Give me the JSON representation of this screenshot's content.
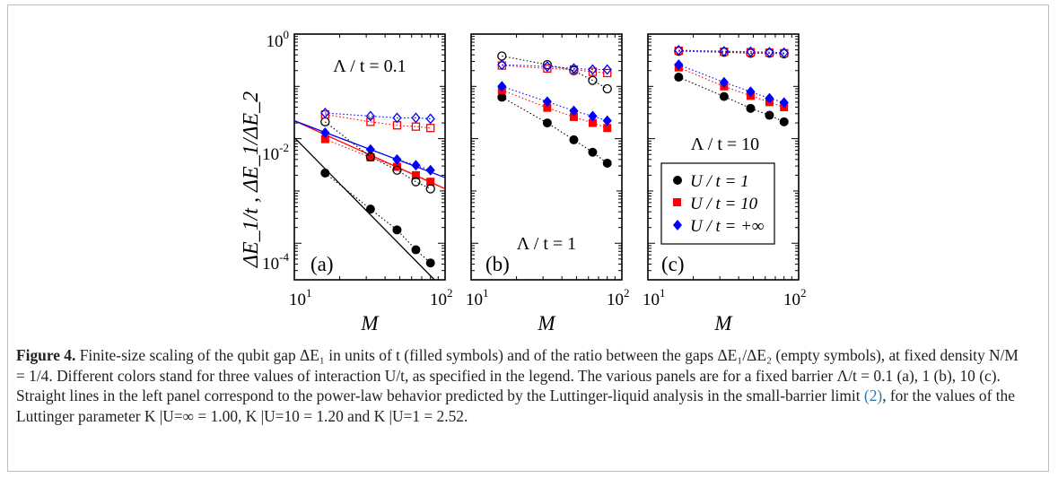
{
  "figure": {
    "ylabel": "ΔE_1/t ,  ΔE_1/ΔE_2",
    "xlabel": "M",
    "legend": [
      {
        "label": "U / t = 1",
        "color": "#000000",
        "marker": "circle"
      },
      {
        "label": "U / t = 10",
        "color": "#ff0000",
        "marker": "square"
      },
      {
        "label": "U / t = +∞",
        "color": "#0000ff",
        "marker": "diamond"
      }
    ],
    "y_ticks": [
      "10",
      "10",
      "10"
    ],
    "y_tick_exps": [
      "0",
      "-2",
      "-4"
    ],
    "x_ticks": [
      "10",
      "10"
    ],
    "x_tick_exps": [
      "1",
      "2"
    ]
  },
  "caption": {
    "label": "Figure 4.",
    "text": " Finite-size scaling of the qubit gap ΔE₁ in units of t (filled symbols) and of the ratio between the gaps ΔE₁/ΔE₂ (empty symbols), at fixed density N/M = 1/4. Different colors stand for three values of interaction U/t, as specified in the legend. The various panels are for a fixed barrier Λ/t = 0.1 (a), 1 (b), 10 (c). Straight lines in the left panel correspond to the power-law behavior predicted by the Luttinger-liquid analysis in the small-barrier limit ",
    "ref": "(2)",
    "text_end": ", for the values of the Luttinger parameter K |U=∞ = 1.00, K |U=10 = 1.20 and K |U=1 = 2.52."
  },
  "chart_data": [
    {
      "type": "scatter",
      "panel_label": "(a)",
      "annotation": "Λ / t = 0.1",
      "xlabel": "M",
      "x_scale": "log",
      "y_scale": "log",
      "xlim": [
        10,
        100
      ],
      "ylim": [
        2e-05,
        1
      ],
      "x": [
        16,
        32,
        48,
        64,
        80
      ],
      "series": [
        {
          "name": "U / t = 1",
          "kind": "gap",
          "values": [
            0.0022,
            0.00045,
            0.00018,
            7.5e-05,
            4.2e-05
          ]
        },
        {
          "name": "U / t = 10",
          "kind": "gap",
          "values": [
            0.0098,
            0.0044,
            0.0029,
            0.002,
            0.0015
          ]
        },
        {
          "name": "U / t = +∞",
          "kind": "gap",
          "values": [
            0.013,
            0.0062,
            0.004,
            0.0031,
            0.0025
          ]
        },
        {
          "name": "U / t = 1",
          "kind": "ratio",
          "values": [
            0.021,
            0.0045,
            0.0025,
            0.0015,
            0.0011
          ]
        },
        {
          "name": "U / t = 10",
          "kind": "ratio",
          "values": [
            0.029,
            0.021,
            0.018,
            0.017,
            0.016
          ]
        },
        {
          "name": "U / t = +∞",
          "kind": "ratio",
          "values": [
            0.031,
            0.027,
            0.025,
            0.025,
            0.024
          ]
        }
      ],
      "fit_lines": [
        {
          "name": "U / t = 1",
          "x": [
            10,
            85
          ],
          "y": [
            0.0105,
            2e-05
          ]
        },
        {
          "name": "U / t = 10",
          "x": [
            10,
            100
          ],
          "y": [
            0.022,
            0.0011
          ]
        },
        {
          "name": "U / t = +∞",
          "x": [
            10,
            100
          ],
          "y": [
            0.022,
            0.0018
          ]
        }
      ]
    },
    {
      "type": "scatter",
      "panel_label": "(b)",
      "annotation": "Λ / t = 1",
      "xlabel": "M",
      "x_scale": "log",
      "y_scale": "log",
      "xlim": [
        10,
        100
      ],
      "ylim": [
        2e-05,
        1
      ],
      "x": [
        16,
        32,
        48,
        64,
        80
      ],
      "series": [
        {
          "name": "U / t = 1",
          "kind": "gap",
          "values": [
            0.062,
            0.02,
            0.0095,
            0.0055,
            0.0034
          ]
        },
        {
          "name": "U / t = 10",
          "kind": "gap",
          "values": [
            0.085,
            0.039,
            0.026,
            0.02,
            0.016
          ]
        },
        {
          "name": "U / t = +∞",
          "kind": "gap",
          "values": [
            0.1,
            0.051,
            0.034,
            0.027,
            0.022
          ]
        },
        {
          "name": "U / t = 1",
          "kind": "ratio",
          "values": [
            0.38,
            0.26,
            0.2,
            0.13,
            0.09
          ]
        },
        {
          "name": "U / t = 10",
          "kind": "ratio",
          "values": [
            0.25,
            0.22,
            0.21,
            0.19,
            0.18
          ]
        },
        {
          "name": "U / t = +∞",
          "kind": "ratio",
          "values": [
            0.26,
            0.24,
            0.22,
            0.21,
            0.21
          ]
        }
      ]
    },
    {
      "type": "scatter",
      "panel_label": "(c)",
      "annotation": "Λ / t = 10",
      "xlabel": "M",
      "x_scale": "log",
      "y_scale": "log",
      "xlim": [
        10,
        100
      ],
      "ylim": [
        2e-05,
        1
      ],
      "x": [
        16,
        32,
        48,
        64,
        80
      ],
      "series": [
        {
          "name": "U / t = 1",
          "kind": "gap",
          "values": [
            0.15,
            0.064,
            0.038,
            0.028,
            0.021
          ]
        },
        {
          "name": "U / t = 10",
          "kind": "gap",
          "values": [
            0.23,
            0.1,
            0.066,
            0.05,
            0.04
          ]
        },
        {
          "name": "U / t = +∞",
          "kind": "gap",
          "values": [
            0.26,
            0.12,
            0.079,
            0.059,
            0.049
          ]
        },
        {
          "name": "U / t = 1",
          "kind": "ratio",
          "values": [
            0.47,
            0.45,
            0.43,
            0.43,
            0.42
          ]
        },
        {
          "name": "U / t = 10",
          "kind": "ratio",
          "values": [
            0.48,
            0.46,
            0.45,
            0.44,
            0.43
          ]
        },
        {
          "name": "U / t = +∞",
          "kind": "ratio",
          "values": [
            0.49,
            0.47,
            0.46,
            0.45,
            0.44
          ]
        }
      ]
    }
  ]
}
